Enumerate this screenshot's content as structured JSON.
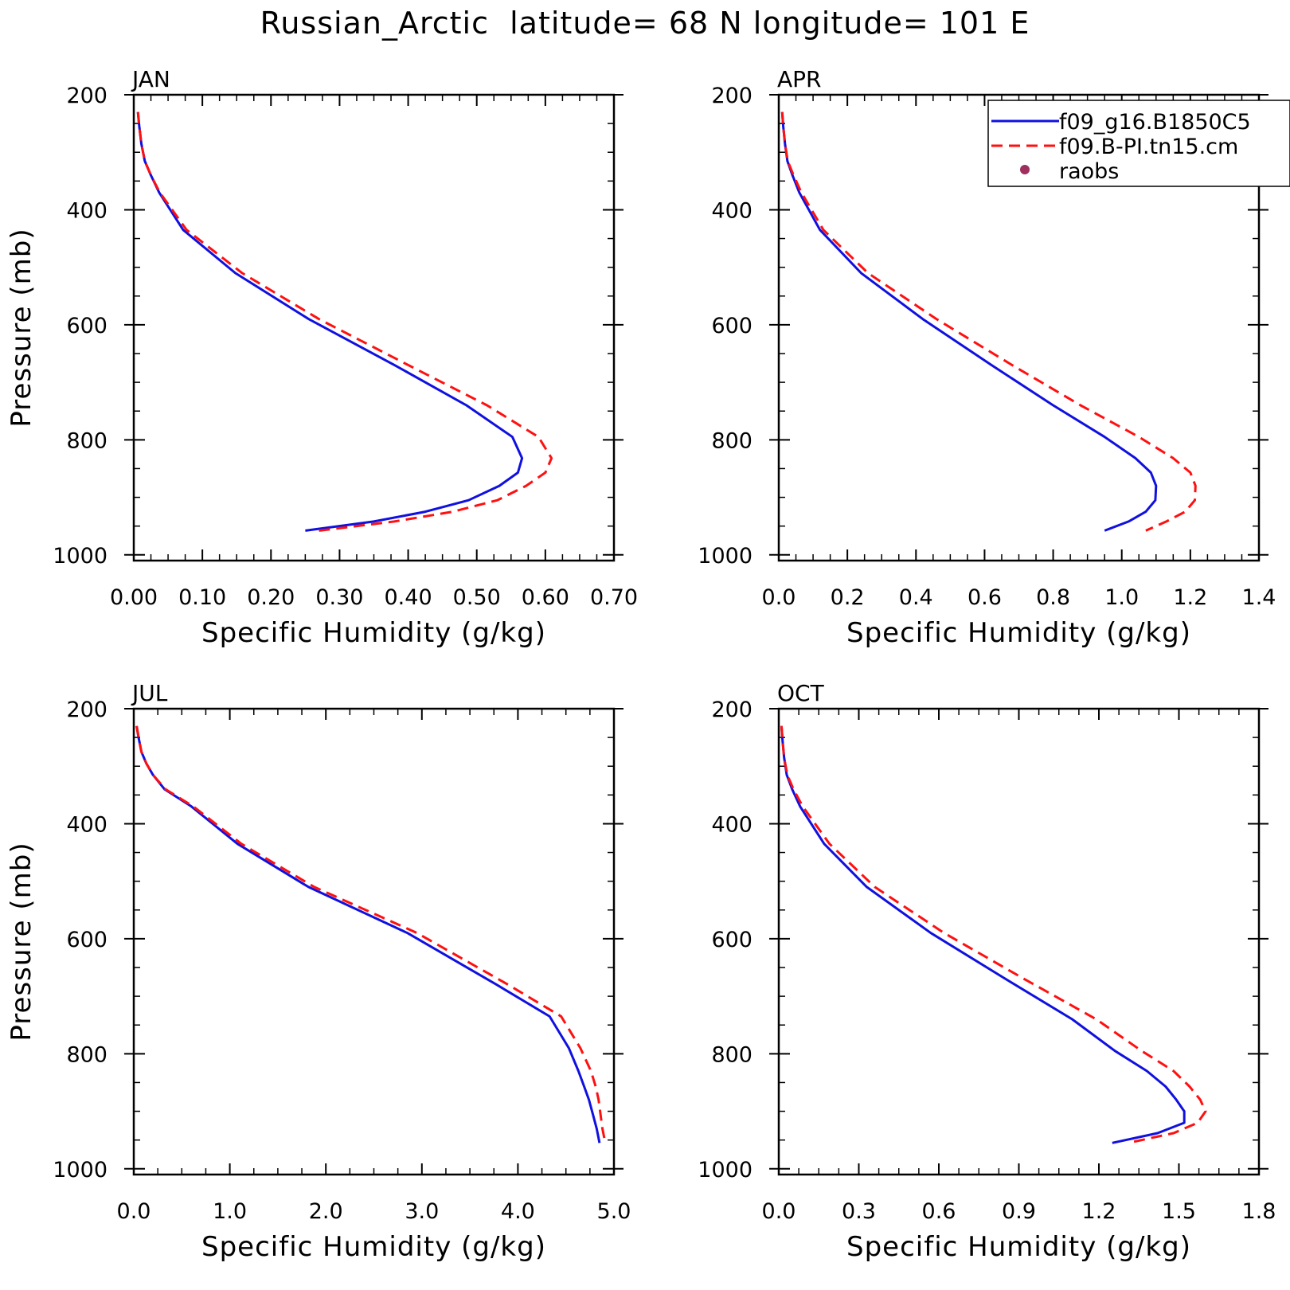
{
  "figure_title": "Russian_Arctic  latitude= 68 N longitude= 101 E",
  "colors": {
    "model_a": "#1010e0",
    "model_b": "#ff1010",
    "raobs": "#9e2f5e",
    "frame": "#000000"
  },
  "legend": {
    "entries": [
      {
        "label": "f09_g16.B1850C5",
        "style": "solid",
        "color": "#1010e0"
      },
      {
        "label": "f09.B-PI.tn15.cm",
        "style": "dashed",
        "color": "#ff1010"
      },
      {
        "label": "raobs",
        "style": "dot",
        "color": "#9e2f5e"
      }
    ]
  },
  "chart_data": [
    {
      "type": "line",
      "title": "JAN",
      "xlabel": "Specific Humidity (g/kg)",
      "ylabel": "Pressure (mb)",
      "xlim": [
        0,
        0.7
      ],
      "ylim": [
        1000,
        200
      ],
      "y_reversed": true,
      "xticks": [
        0,
        0.1,
        0.2,
        0.3,
        0.4,
        0.5,
        0.6,
        0.7
      ],
      "xtick_labels": [
        "0.00",
        "0.10",
        "0.20",
        "0.30",
        "0.40",
        "0.50",
        "0.60",
        "0.70"
      ],
      "yticks": [
        200,
        400,
        600,
        800,
        1000
      ],
      "ytick_labels": [
        "200",
        "400",
        "600",
        "800",
        "1000"
      ],
      "series": [
        {
          "name": "f09_g16.B1850C5",
          "x": [
            0.006,
            0.008,
            0.011,
            0.016,
            0.025,
            0.037,
            0.072,
            0.148,
            0.255,
            0.38,
            0.485,
            0.552,
            0.566,
            0.56,
            0.533,
            0.488,
            0.425,
            0.35,
            0.25
          ],
          "y": [
            230,
            255,
            285,
            315,
            340,
            370,
            435,
            510,
            590,
            670,
            740,
            795,
            832,
            857,
            880,
            905,
            925,
            942,
            958
          ]
        },
        {
          "name": "f09.B-PI.tn15.cm",
          "x": [
            0.006,
            0.008,
            0.011,
            0.016,
            0.025,
            0.038,
            0.077,
            0.158,
            0.27,
            0.4,
            0.515,
            0.59,
            0.609,
            0.6,
            0.572,
            0.53,
            0.465,
            0.38,
            0.27
          ],
          "y": [
            230,
            255,
            285,
            315,
            340,
            370,
            435,
            510,
            590,
            670,
            740,
            795,
            832,
            857,
            880,
            905,
            925,
            942,
            958
          ]
        }
      ]
    },
    {
      "type": "line",
      "title": "APR",
      "xlabel": "Specific Humidity (g/kg)",
      "ylabel": "",
      "xlim": [
        0,
        1.4
      ],
      "ylim": [
        1000,
        200
      ],
      "y_reversed": true,
      "xticks": [
        0,
        0.2,
        0.4,
        0.6,
        0.8,
        1.0,
        1.2,
        1.4
      ],
      "xtick_labels": [
        "0.0",
        "0.2",
        "0.4",
        "0.6",
        "0.8",
        "1.0",
        "1.2",
        "1.4"
      ],
      "yticks": [
        200,
        400,
        600,
        800,
        1000
      ],
      "ytick_labels": [
        "200",
        "400",
        "600",
        "800",
        "1000"
      ],
      "series": [
        {
          "name": "f09_g16.B1850C5",
          "x": [
            0.01,
            0.013,
            0.018,
            0.025,
            0.04,
            0.06,
            0.12,
            0.24,
            0.42,
            0.62,
            0.8,
            0.95,
            1.04,
            1.085,
            1.1,
            1.098,
            1.07,
            1.02,
            0.95
          ],
          "y": [
            230,
            255,
            285,
            315,
            340,
            370,
            435,
            510,
            590,
            670,
            740,
            795,
            832,
            857,
            880,
            905,
            925,
            942,
            958
          ]
        },
        {
          "name": "f09.B-PI.tn15.cm",
          "x": [
            0.01,
            0.013,
            0.018,
            0.026,
            0.043,
            0.066,
            0.13,
            0.26,
            0.46,
            0.68,
            0.88,
            1.05,
            1.15,
            1.2,
            1.215,
            1.213,
            1.185,
            1.13,
            1.07
          ],
          "y": [
            230,
            255,
            285,
            315,
            340,
            370,
            435,
            510,
            590,
            670,
            740,
            795,
            832,
            857,
            880,
            905,
            925,
            942,
            958
          ]
        }
      ]
    },
    {
      "type": "line",
      "title": "JUL",
      "xlabel": "Specific Humidity (g/kg)",
      "ylabel": "Pressure (mb)",
      "xlim": [
        0,
        5
      ],
      "ylim": [
        1000,
        200
      ],
      "y_reversed": true,
      "xticks": [
        0,
        1,
        2,
        3,
        4,
        5
      ],
      "xtick_labels": [
        "0.0",
        "1.0",
        "2.0",
        "3.0",
        "4.0",
        "5.0"
      ],
      "yticks": [
        200,
        400,
        600,
        800,
        1000
      ],
      "ytick_labels": [
        "200",
        "400",
        "600",
        "800",
        "1000"
      ],
      "series": [
        {
          "name": "f09_g16.B1850C5",
          "x": [
            0.03,
            0.05,
            0.08,
            0.13,
            0.2,
            0.32,
            0.6,
            1.08,
            1.82,
            2.85,
            3.78,
            4.33,
            4.53,
            4.63,
            4.69,
            4.74,
            4.78,
            4.82,
            4.85
          ],
          "y": [
            230,
            250,
            275,
            295,
            315,
            340,
            370,
            435,
            510,
            590,
            680,
            735,
            790,
            830,
            857,
            880,
            905,
            930,
            955
          ]
        },
        {
          "name": "f09.B-PI.tn15.cm",
          "x": [
            0.03,
            0.05,
            0.08,
            0.13,
            0.2,
            0.33,
            0.62,
            1.12,
            1.88,
            2.95,
            3.9,
            4.45,
            4.65,
            4.76,
            4.81,
            4.84,
            4.86,
            4.88,
            4.91
          ],
          "y": [
            230,
            250,
            275,
            295,
            315,
            340,
            370,
            435,
            510,
            590,
            680,
            735,
            790,
            830,
            857,
            880,
            905,
            930,
            955
          ]
        }
      ]
    },
    {
      "type": "line",
      "title": "OCT",
      "xlabel": "Specific Humidity (g/kg)",
      "ylabel": "",
      "xlim": [
        0,
        1.8
      ],
      "ylim": [
        1000,
        200
      ],
      "y_reversed": true,
      "xticks": [
        0,
        0.3,
        0.6,
        0.9,
        1.2,
        1.5,
        1.8
      ],
      "xtick_labels": [
        "0.0",
        "0.3",
        "0.6",
        "0.9",
        "1.2",
        "1.5",
        "1.8"
      ],
      "yticks": [
        200,
        400,
        600,
        800,
        1000
      ],
      "ytick_labels": [
        "200",
        "400",
        "600",
        "800",
        "1000"
      ],
      "series": [
        {
          "name": "f09_g16.B1850C5",
          "x": [
            0.01,
            0.014,
            0.02,
            0.03,
            0.05,
            0.08,
            0.17,
            0.33,
            0.57,
            0.85,
            1.1,
            1.26,
            1.38,
            1.45,
            1.49,
            1.52,
            1.52,
            1.42,
            1.25
          ],
          "y": [
            230,
            255,
            285,
            315,
            340,
            370,
            435,
            510,
            590,
            670,
            740,
            795,
            830,
            857,
            880,
            900,
            920,
            938,
            955
          ]
        },
        {
          "name": "f09.B-PI.tn15.cm",
          "x": [
            0.01,
            0.014,
            0.02,
            0.032,
            0.055,
            0.09,
            0.19,
            0.36,
            0.62,
            0.92,
            1.19,
            1.36,
            1.48,
            1.54,
            1.58,
            1.6,
            1.57,
            1.48,
            1.31
          ],
          "y": [
            230,
            255,
            285,
            315,
            340,
            370,
            435,
            510,
            590,
            670,
            740,
            795,
            830,
            857,
            880,
            900,
            920,
            938,
            955
          ]
        }
      ]
    }
  ]
}
